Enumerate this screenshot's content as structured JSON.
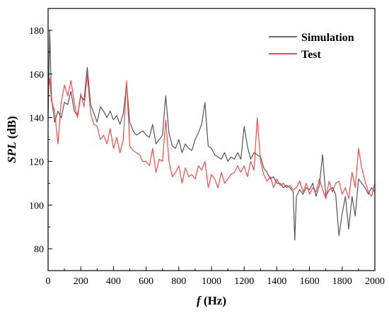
{
  "chart_data": {
    "type": "line",
    "title": "",
    "xlabel": {
      "symbol": "f",
      "unit": "(Hz)"
    },
    "ylabel": {
      "symbol": "SPL",
      "unit": "(dB)"
    },
    "xlim": [
      0,
      2000
    ],
    "ylim": [
      70,
      190
    ],
    "xticks": [
      0,
      200,
      400,
      600,
      800,
      1000,
      1200,
      1400,
      1600,
      1800,
      2000
    ],
    "yticks": [
      80,
      100,
      120,
      140,
      160,
      180
    ],
    "grid": false,
    "legend_position": "top-right",
    "series": [
      {
        "name": "Simulation",
        "color": "#555555",
        "x": [
          0,
          10,
          20,
          40,
          60,
          80,
          100,
          120,
          140,
          160,
          180,
          200,
          220,
          240,
          260,
          280,
          300,
          320,
          340,
          360,
          380,
          400,
          420,
          440,
          460,
          480,
          500,
          520,
          540,
          560,
          580,
          600,
          620,
          640,
          660,
          680,
          700,
          720,
          740,
          760,
          780,
          800,
          820,
          840,
          860,
          880,
          900,
          920,
          940,
          960,
          980,
          1000,
          1020,
          1040,
          1060,
          1080,
          1100,
          1120,
          1140,
          1160,
          1180,
          1200,
          1220,
          1240,
          1260,
          1280,
          1300,
          1320,
          1340,
          1360,
          1380,
          1400,
          1420,
          1440,
          1460,
          1480,
          1500,
          1510,
          1520,
          1540,
          1560,
          1580,
          1600,
          1620,
          1640,
          1660,
          1680,
          1700,
          1720,
          1740,
          1760,
          1780,
          1800,
          1820,
          1840,
          1860,
          1880,
          1900,
          1920,
          1940,
          1960,
          1980,
          2000
        ],
        "y": [
          140,
          180,
          150,
          138,
          143,
          140,
          147,
          146,
          152,
          143,
          141,
          150,
          148,
          163,
          146,
          142,
          138,
          145,
          143,
          140,
          143,
          139,
          141,
          137,
          142,
          155,
          138,
          134,
          132,
          133,
          134,
          132,
          131,
          137,
          128,
          130,
          132,
          150,
          133,
          127,
          126,
          130,
          124,
          128,
          126,
          125,
          130,
          133,
          137,
          147,
          127,
          126,
          123,
          122,
          121,
          124,
          120,
          122,
          121,
          124,
          121,
          136,
          127,
          121,
          124,
          123,
          122,
          117,
          115,
          112,
          113,
          110,
          110,
          108,
          109,
          108,
          106,
          84,
          104,
          107,
          105,
          108,
          107,
          110,
          104,
          109,
          123,
          104,
          107,
          108,
          105,
          86,
          96,
          104,
          89,
          104,
          95,
          112,
          110,
          108,
          105,
          108,
          106
        ]
      },
      {
        "name": "Test",
        "color": "#ff3333",
        "x": [
          0,
          10,
          20,
          40,
          60,
          80,
          100,
          120,
          140,
          160,
          180,
          200,
          220,
          240,
          260,
          280,
          300,
          320,
          340,
          360,
          380,
          400,
          420,
          440,
          460,
          480,
          500,
          520,
          540,
          560,
          580,
          600,
          620,
          640,
          660,
          680,
          700,
          720,
          740,
          760,
          780,
          800,
          820,
          840,
          860,
          880,
          900,
          920,
          940,
          960,
          980,
          1000,
          1020,
          1040,
          1060,
          1080,
          1100,
          1120,
          1140,
          1160,
          1180,
          1200,
          1220,
          1240,
          1260,
          1280,
          1300,
          1320,
          1340,
          1360,
          1380,
          1400,
          1420,
          1440,
          1460,
          1480,
          1500,
          1520,
          1540,
          1560,
          1580,
          1600,
          1620,
          1640,
          1660,
          1680,
          1700,
          1720,
          1740,
          1760,
          1780,
          1800,
          1820,
          1840,
          1860,
          1880,
          1900,
          1920,
          1940,
          1960,
          1980,
          2000
        ],
        "y": [
          152,
          158,
          148,
          143,
          128,
          147,
          155,
          150,
          157,
          147,
          140,
          151,
          145,
          160,
          142,
          137,
          136,
          130,
          132,
          128,
          135,
          126,
          131,
          124,
          130,
          157,
          127,
          125,
          124,
          123,
          120,
          120,
          118,
          126,
          115,
          121,
          120,
          139,
          120,
          113,
          115,
          118,
          110,
          117,
          113,
          114,
          112,
          118,
          116,
          120,
          108,
          114,
          112,
          108,
          115,
          110,
          112,
          114,
          115,
          118,
          115,
          118,
          113,
          120,
          116,
          140,
          120,
          114,
          111,
          113,
          108,
          112,
          109,
          110,
          108,
          109,
          107,
          108,
          111,
          106,
          110,
          105,
          108,
          106,
          112,
          107,
          103,
          111,
          106,
          110,
          111,
          105,
          108,
          103,
          115,
          108,
          126,
          117,
          111,
          106,
          104,
          110
        ]
      }
    ]
  }
}
